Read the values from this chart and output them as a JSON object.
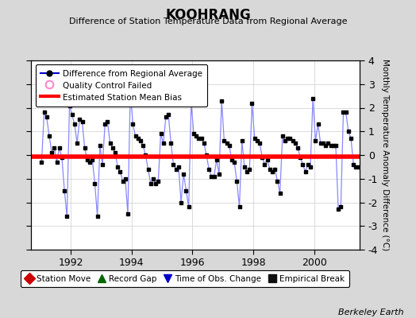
{
  "title": "KOOHRANG",
  "subtitle": "Difference of Station Temperature Data from Regional Average",
  "ylabel_right": "Monthly Temperature Anomaly Difference (°C)",
  "xlim": [
    1990.7,
    2001.5
  ],
  "ylim": [
    -4,
    4
  ],
  "yticks": [
    -4,
    -3,
    -2,
    -1,
    0,
    1,
    2,
    3,
    4
  ],
  "xticks": [
    1992,
    1994,
    1996,
    1998,
    2000
  ],
  "bias_value": -0.07,
  "line_color": "#8888ff",
  "marker_color": "#000000",
  "bias_color": "#ff0000",
  "background_color": "#d8d8d8",
  "plot_bg_color": "#ffffff",
  "legend1_entries": [
    {
      "label": "Difference from Regional Average"
    },
    {
      "label": "Quality Control Failed"
    },
    {
      "label": "Estimated Station Mean Bias"
    }
  ],
  "legend2_entries": [
    {
      "label": "Station Move"
    },
    {
      "label": "Record Gap"
    },
    {
      "label": "Time of Obs. Change"
    },
    {
      "label": "Empirical Break"
    }
  ],
  "watermark": "Berkeley Earth",
  "time_series": [
    1991.042,
    1991.125,
    1991.208,
    1991.292,
    1991.375,
    1991.458,
    1991.542,
    1991.625,
    1991.708,
    1991.792,
    1991.875,
    1991.958,
    1992.042,
    1992.125,
    1992.208,
    1992.292,
    1992.375,
    1992.458,
    1992.542,
    1992.625,
    1992.708,
    1992.792,
    1992.875,
    1992.958,
    1993.042,
    1993.125,
    1993.208,
    1993.292,
    1993.375,
    1993.458,
    1993.542,
    1993.625,
    1993.708,
    1993.792,
    1993.875,
    1993.958,
    1994.042,
    1994.125,
    1994.208,
    1994.292,
    1994.375,
    1994.458,
    1994.542,
    1994.625,
    1994.708,
    1994.792,
    1994.875,
    1994.958,
    1995.042,
    1995.125,
    1995.208,
    1995.292,
    1995.375,
    1995.458,
    1995.542,
    1995.625,
    1995.708,
    1995.792,
    1995.875,
    1995.958,
    1996.042,
    1996.125,
    1996.208,
    1996.292,
    1996.375,
    1996.458,
    1996.542,
    1996.625,
    1996.708,
    1996.792,
    1996.875,
    1996.958,
    1997.042,
    1997.125,
    1997.208,
    1997.292,
    1997.375,
    1997.458,
    1997.542,
    1997.625,
    1997.708,
    1997.792,
    1997.875,
    1997.958,
    1998.042,
    1998.125,
    1998.208,
    1998.292,
    1998.375,
    1998.458,
    1998.542,
    1998.625,
    1998.708,
    1998.792,
    1998.875,
    1998.958,
    1999.042,
    1999.125,
    1999.208,
    1999.292,
    1999.375,
    1999.458,
    1999.542,
    1999.625,
    1999.708,
    1999.792,
    1999.875,
    1999.958,
    2000.042,
    2000.125,
    2000.208,
    2000.292,
    2000.375,
    2000.458,
    2000.542,
    2000.625,
    2000.708,
    2000.792,
    2000.875,
    2000.958,
    2001.042,
    2001.125,
    2001.208,
    2001.292,
    2001.375,
    2001.458
  ],
  "values": [
    -0.3,
    1.8,
    1.6,
    0.8,
    0.1,
    0.3,
    -0.3,
    0.3,
    -0.1,
    -1.5,
    -2.6,
    2.1,
    1.7,
    1.3,
    0.5,
    1.5,
    1.4,
    0.3,
    -0.2,
    -0.3,
    -0.2,
    -1.2,
    -2.6,
    0.4,
    -0.4,
    1.3,
    1.4,
    0.5,
    0.3,
    0.1,
    -0.5,
    -0.7,
    -1.1,
    -1.0,
    -2.5,
    2.7,
    1.3,
    0.8,
    0.7,
    0.6,
    0.4,
    0.0,
    -0.6,
    -1.2,
    -1.0,
    -1.2,
    -1.1,
    0.9,
    0.5,
    1.6,
    1.7,
    0.5,
    -0.4,
    -0.6,
    -0.5,
    -2.0,
    -0.8,
    -1.5,
    -2.2,
    2.2,
    0.9,
    0.8,
    0.7,
    0.7,
    0.5,
    0.0,
    -0.6,
    -0.9,
    -0.9,
    -0.2,
    -0.8,
    2.3,
    0.6,
    0.5,
    0.4,
    -0.2,
    -0.3,
    -1.1,
    -2.2,
    0.6,
    -0.5,
    -0.7,
    -0.6,
    2.2,
    0.7,
    0.6,
    0.5,
    -0.1,
    -0.4,
    -0.2,
    -0.6,
    -0.7,
    -0.6,
    -1.1,
    -1.6,
    0.8,
    0.6,
    0.7,
    0.7,
    0.6,
    0.5,
    0.3,
    -0.1,
    -0.4,
    -0.7,
    -0.4,
    -0.5,
    2.4,
    0.6,
    1.3,
    0.5,
    0.5,
    0.4,
    0.5,
    0.4,
    0.4,
    0.4,
    -2.3,
    -2.2,
    1.8,
    1.8,
    1.0,
    0.7,
    -0.4,
    -0.5,
    -0.5
  ]
}
